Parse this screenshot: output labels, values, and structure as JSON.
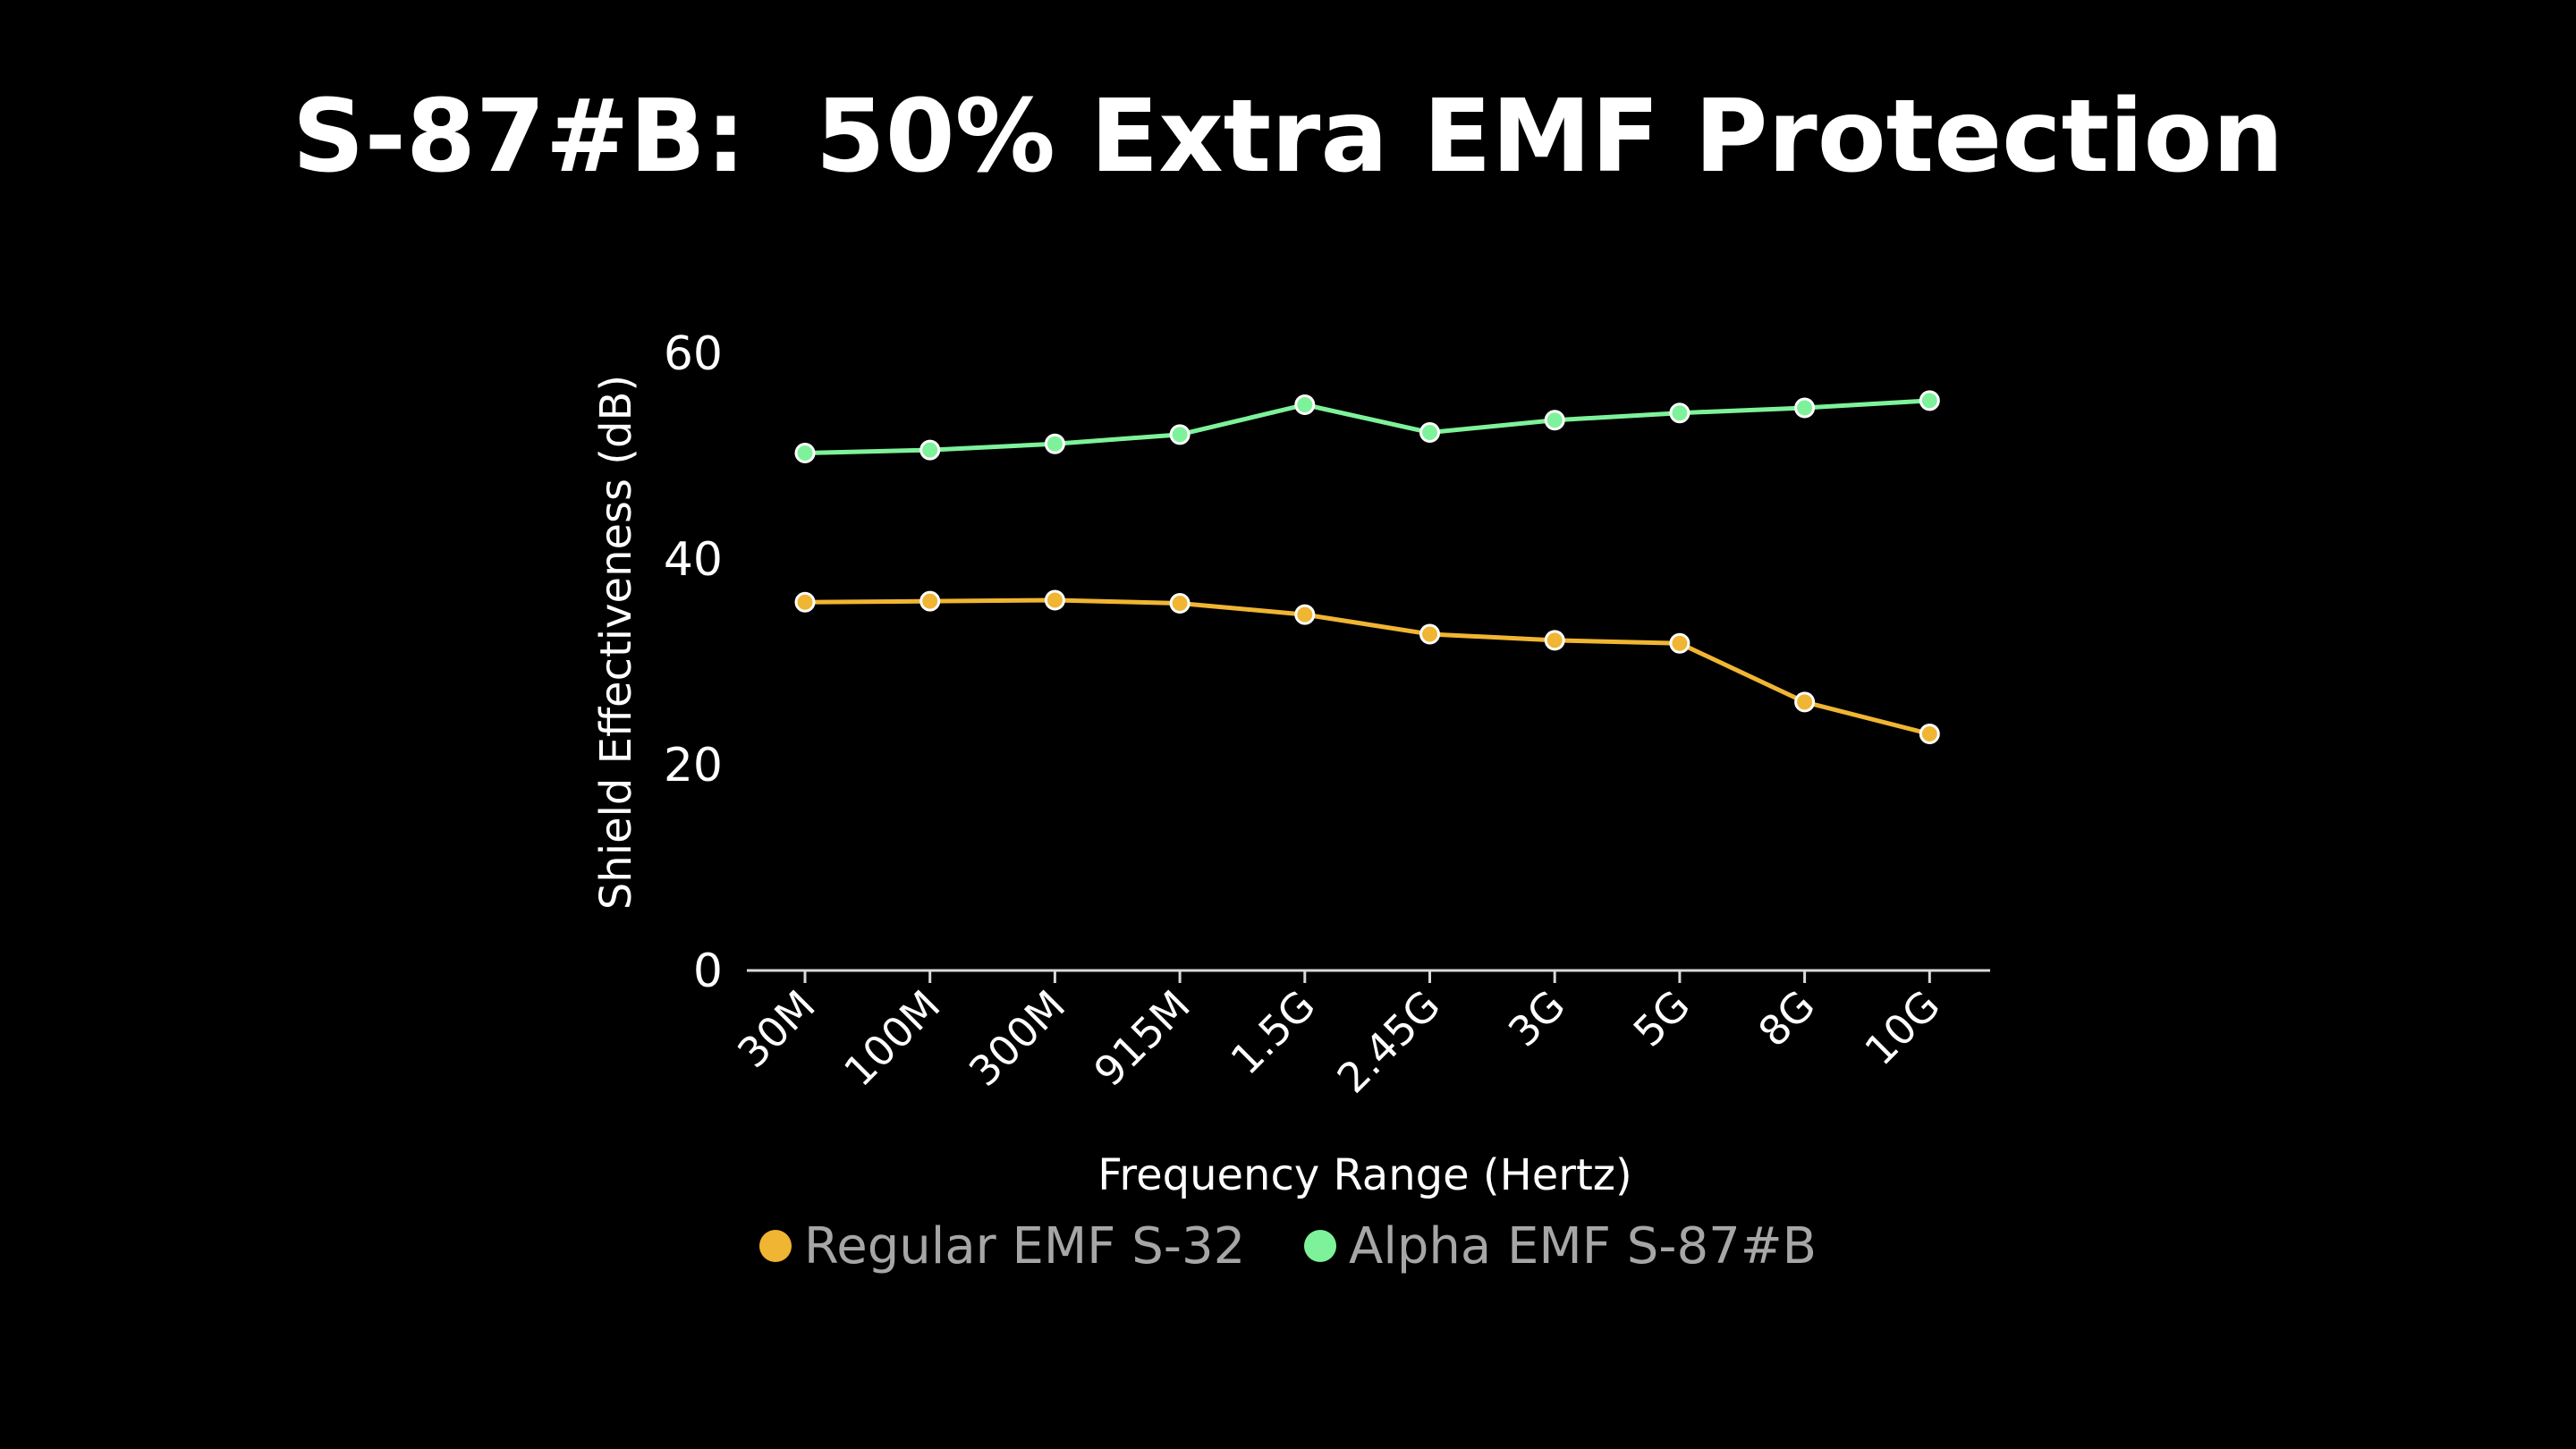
{
  "title": "S-87#B:  50% Extra EMF Protection",
  "chart_data": {
    "type": "line",
    "categories": [
      "30M",
      "100M",
      "300M",
      "915M",
      "1.5G",
      "2.45G",
      "3G",
      "5G",
      "8G",
      "10G"
    ],
    "series": [
      {
        "name": "Regular EMF S-32",
        "color": "#f0b532",
        "values": [
          35.8,
          35.9,
          36.0,
          35.7,
          34.6,
          32.7,
          32.1,
          31.8,
          26.1,
          23.0
        ]
      },
      {
        "name": "Alpha EMF S-87#B",
        "color": "#7ef29a",
        "values": [
          50.3,
          50.6,
          51.2,
          52.1,
          55.0,
          52.3,
          53.5,
          54.2,
          54.7,
          55.4
        ]
      }
    ],
    "xlabel": "Frequency Range (Hertz)",
    "ylabel": "Shield Effectiveness (dB)",
    "ylim": [
      0,
      60
    ],
    "yticks": [
      0,
      20,
      40,
      60
    ],
    "grid": false,
    "legend": "bottom-center"
  }
}
